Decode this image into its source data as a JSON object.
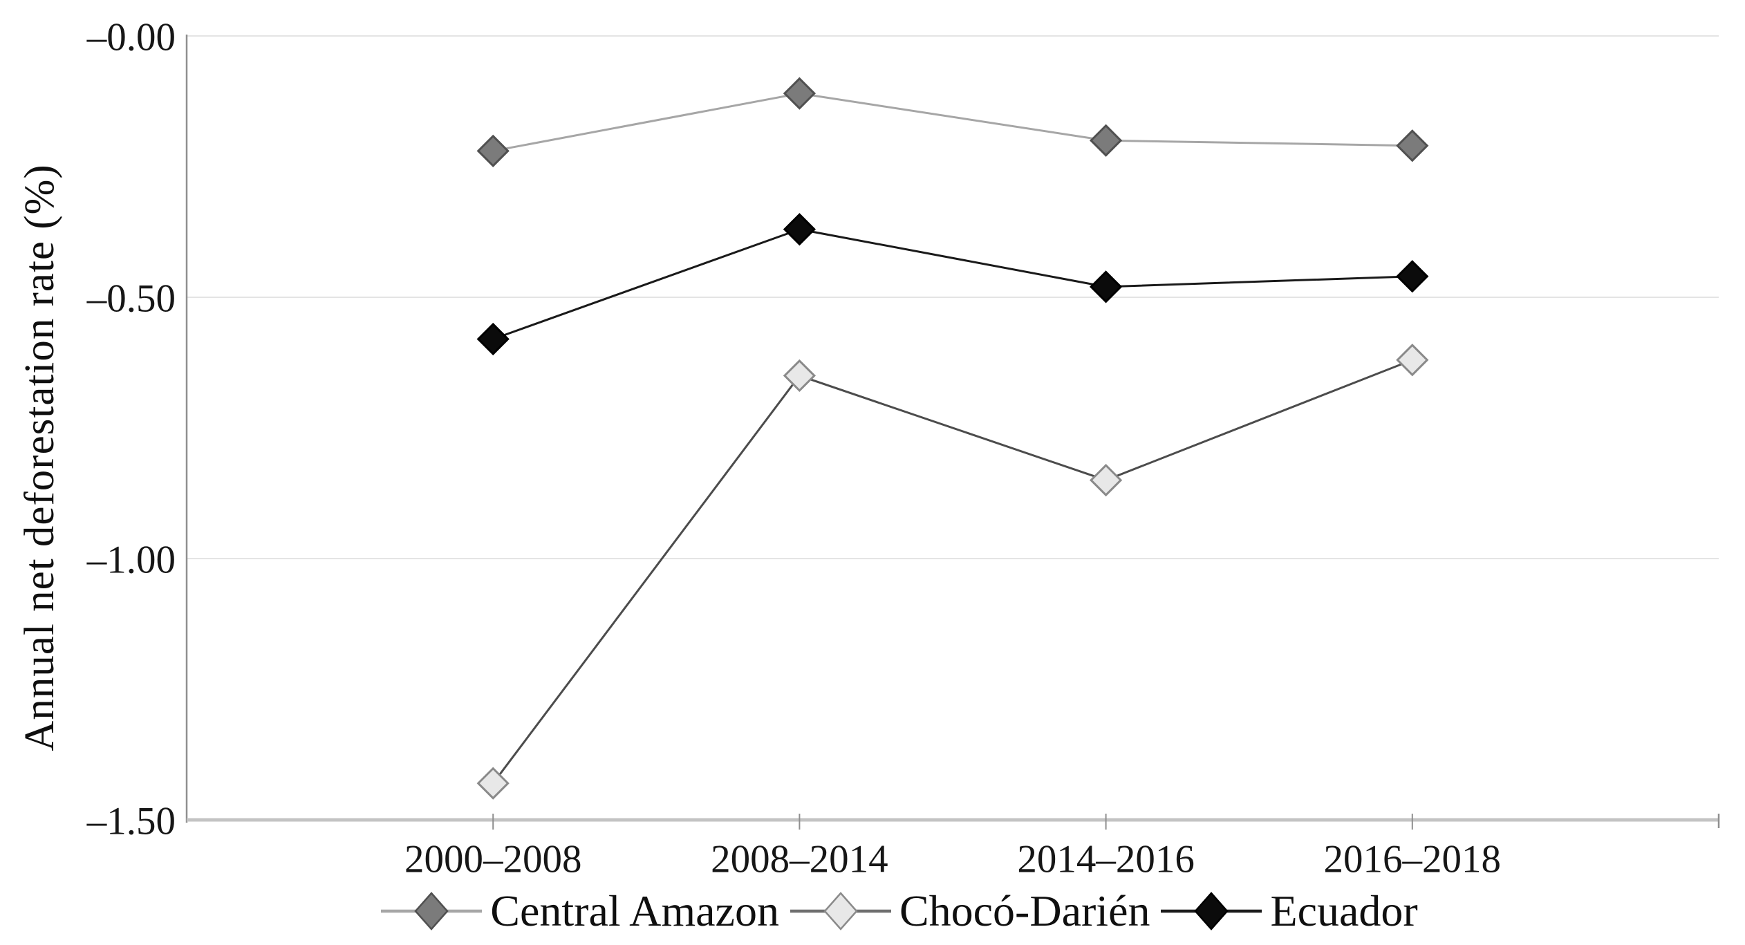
{
  "chart_data": {
    "type": "line",
    "title": "",
    "ylabel": "Annual net deforestation rate (%)",
    "xlabel": "",
    "categories": [
      "2000–2008",
      "2008–2014",
      "2014–2016",
      "2016–2018"
    ],
    "series": [
      {
        "name": "Central Amazon",
        "values": [
          -0.22,
          -0.11,
          -0.2,
          -0.21
        ],
        "line_color": "#a6a6a6",
        "marker_fill": "#7b7b7b",
        "marker_stroke": "#505050",
        "marker": "diamond"
      },
      {
        "name": "Chocó-Darién",
        "values": [
          -1.43,
          -0.65,
          -0.85,
          -0.62
        ],
        "line_color": "#4c4c4c",
        "legend_line_color": "#6e6e6e",
        "marker_fill": "#e8e8e8",
        "marker_stroke": "#8a8a8a",
        "marker": "diamond"
      },
      {
        "name": "Ecuador",
        "values": [
          -0.58,
          -0.37,
          -0.48,
          -0.46
        ],
        "line_color": "#1a1a1a",
        "marker_fill": "#0b0b0b",
        "marker_stroke": "#000000",
        "marker": "diamond"
      }
    ],
    "ylim": [
      -1.5,
      0
    ],
    "y_ticks": [
      {
        "label": "–0.00",
        "value": 0
      },
      {
        "label": "–0.50",
        "value": -0.5
      },
      {
        "label": "–1.00",
        "value": -1.0
      },
      {
        "label": "–1.50",
        "value": -1.5
      }
    ],
    "grid": true,
    "legend_position": "bottom",
    "axis_style": {
      "gridline_color": "#e4e4e4",
      "x_axis_color": "#c3c3c3",
      "y_axis_color": "#8f8f8f",
      "tick_color": "#8f8f8f",
      "tick_label_color": "#161616"
    }
  }
}
